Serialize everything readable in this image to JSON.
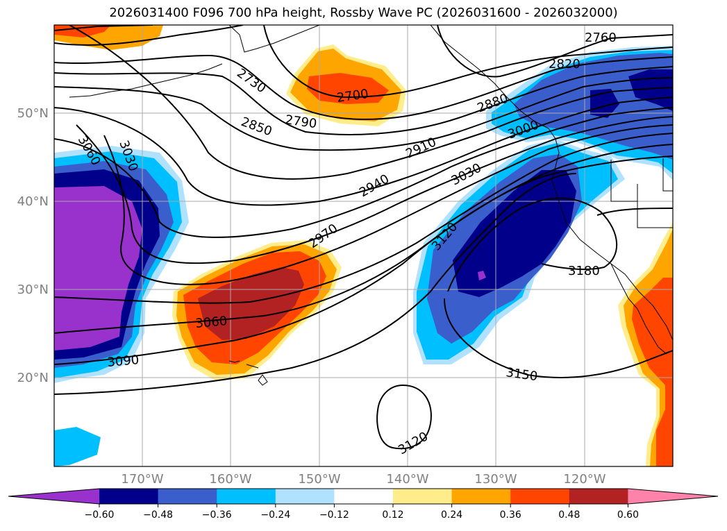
{
  "title": "2026031400 F096 700 hPa height, Rossby Wave PC (2026031600 - 2026032000)",
  "map": {
    "lat_labels": [
      "50°N",
      "40°N",
      "30°N",
      "20°N"
    ],
    "lon_labels": [
      "170°W",
      "160°W",
      "150°W",
      "140°W",
      "130°W",
      "120°W"
    ],
    "contour_labels": [
      "2760",
      "2820",
      "2730",
      "2700",
      "2790",
      "2850",
      "2880",
      "3000",
      "3060",
      "3030",
      "2910",
      "2940",
      "3030",
      "2970",
      "3120",
      "3180",
      "3060",
      "3090",
      "3150",
      "3120"
    ]
  },
  "colorbar": {
    "colors": [
      "#9932cc",
      "#00008b",
      "#3a5fcd",
      "#00bfff",
      "#b0e2ff",
      "#ffffff",
      "#ffec8b",
      "#ffa500",
      "#ff4500",
      "#b22222",
      "#ff82ab"
    ],
    "labels": [
      "−0.60",
      "−0.48",
      "−0.36",
      "−0.24",
      "−0.12",
      "0.12",
      "0.24",
      "0.36",
      "0.48",
      "0.60"
    ]
  }
}
